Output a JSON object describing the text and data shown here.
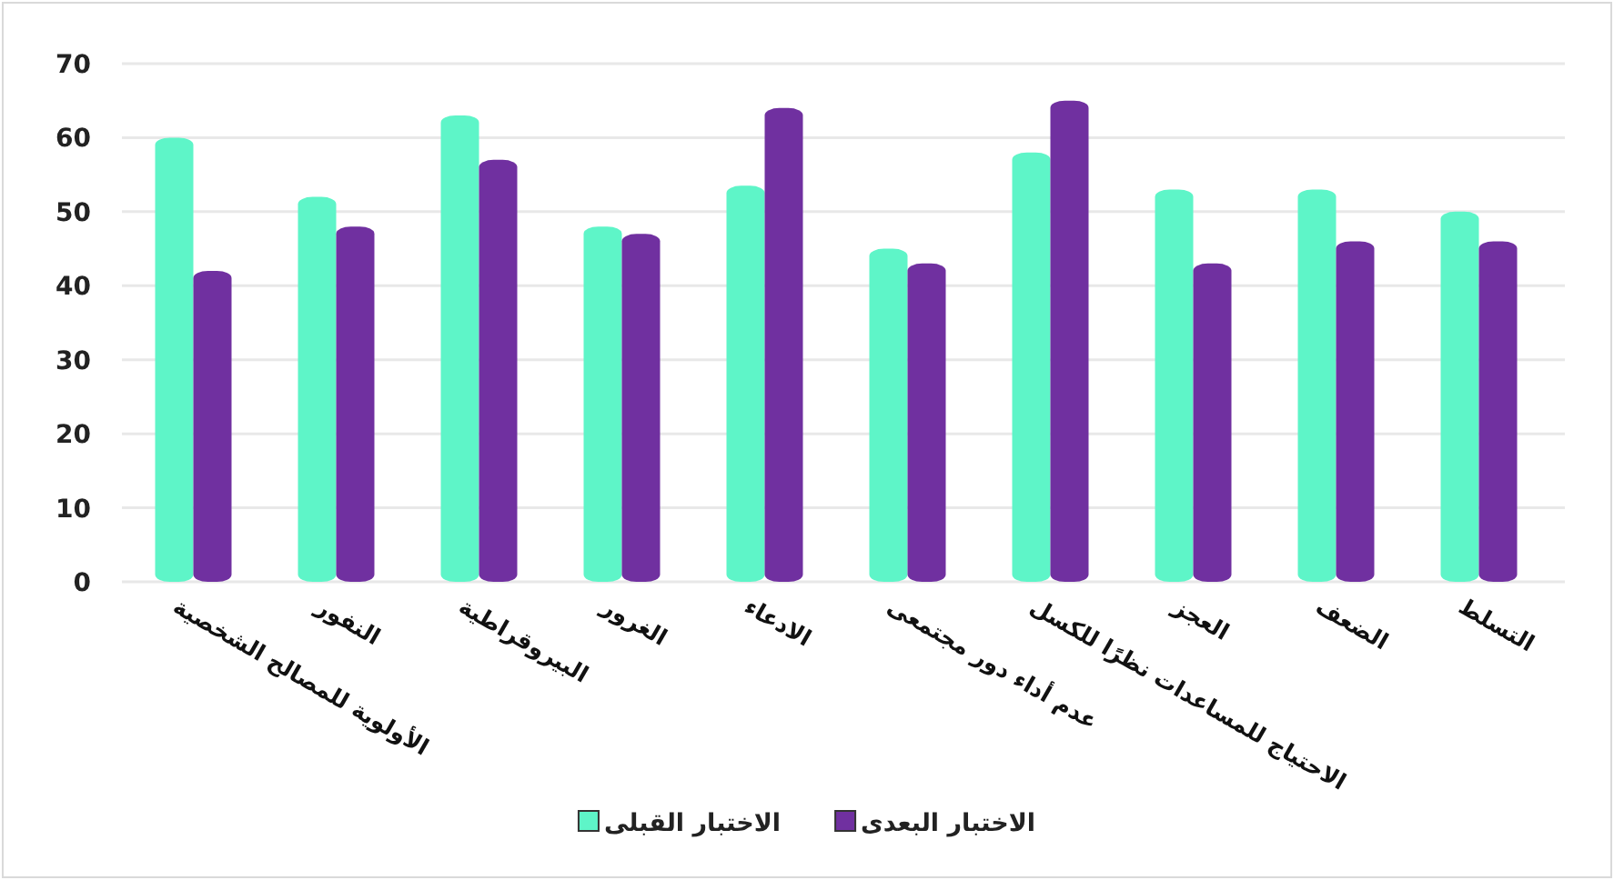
{
  "chart_data": {
    "type": "bar",
    "categories": [
      "الأولوية للمصالح الشخصية",
      "النفور",
      "البيروقراطية",
      "الغرور",
      "الادعاء",
      "عدم أداء دور مجتمعى",
      "الاحتياج للمساعدات نظرًا للكسل",
      "العجز",
      "الضعف",
      "التسلط"
    ],
    "series": [
      {
        "name": "الاختبار القبلى",
        "color": "#5ef5c8",
        "values": [
          60,
          52,
          63,
          48,
          53.5,
          45,
          58,
          53,
          53,
          50
        ]
      },
      {
        "name": "الاختبار البعدى",
        "color": "#7030a0",
        "values": [
          42,
          48,
          57,
          47,
          64,
          43,
          65,
          43,
          46,
          46
        ]
      }
    ],
    "ylim": [
      0,
      70
    ],
    "yticks": [
      0,
      10,
      20,
      30,
      40,
      50,
      60,
      70
    ],
    "grid": "y",
    "legend": "bottom"
  }
}
